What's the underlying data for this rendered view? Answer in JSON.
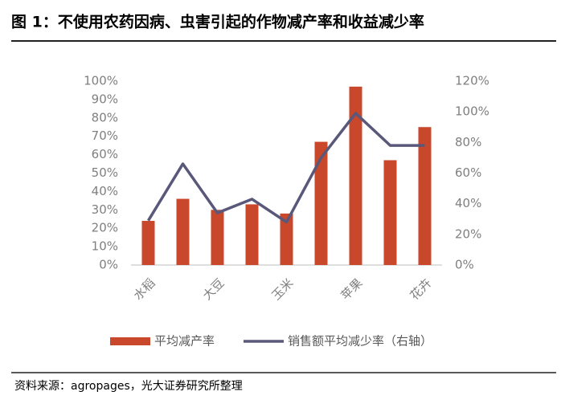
{
  "chart_data": {
    "type": "bar_line",
    "title": "图 1：不使用农药因病、虫害引起的作物减产率和收益减少率",
    "source": "资料来源：agropages，光大证券研究所整理",
    "categories": [
      "水稻",
      null,
      "大豆",
      null,
      "玉米",
      null,
      "苹果",
      null,
      "花卉"
    ],
    "series": [
      {
        "name": "平均减产率",
        "type": "bar",
        "color": "#c9472a",
        "values": [
          24,
          36,
          30,
          33,
          28,
          67,
          97,
          57,
          75
        ]
      },
      {
        "name": "销售额平均减少率（右轴）",
        "type": "line",
        "axis": "y2",
        "color": "#59587a",
        "values": [
          29,
          66,
          34,
          43,
          28,
          70,
          99,
          78,
          78
        ]
      }
    ],
    "ylim": [
      0,
      100
    ],
    "yticks": [
      {
        "value": 0,
        "label": "0%"
      },
      {
        "value": 10,
        "label": "10%"
      },
      {
        "value": 20,
        "label": "20%"
      },
      {
        "value": 30,
        "label": "30%"
      },
      {
        "value": 40,
        "label": "40%"
      },
      {
        "value": 50,
        "label": "50%"
      },
      {
        "value": 60,
        "label": "60%"
      },
      {
        "value": 70,
        "label": "70%"
      },
      {
        "value": 80,
        "label": "80%"
      },
      {
        "value": 90,
        "label": "90%"
      },
      {
        "value": 100,
        "label": "100%"
      }
    ],
    "y2lim": [
      0,
      120
    ],
    "y2ticks": [
      {
        "value": 0,
        "label": "0%"
      },
      {
        "value": 20,
        "label": "20%"
      },
      {
        "value": 40,
        "label": "40%"
      },
      {
        "value": 60,
        "label": "60%"
      },
      {
        "value": 80,
        "label": "80%"
      },
      {
        "value": 100,
        "label": "100%"
      },
      {
        "value": 120,
        "label": "120%"
      }
    ],
    "grid": false,
    "legend": "bottom"
  }
}
